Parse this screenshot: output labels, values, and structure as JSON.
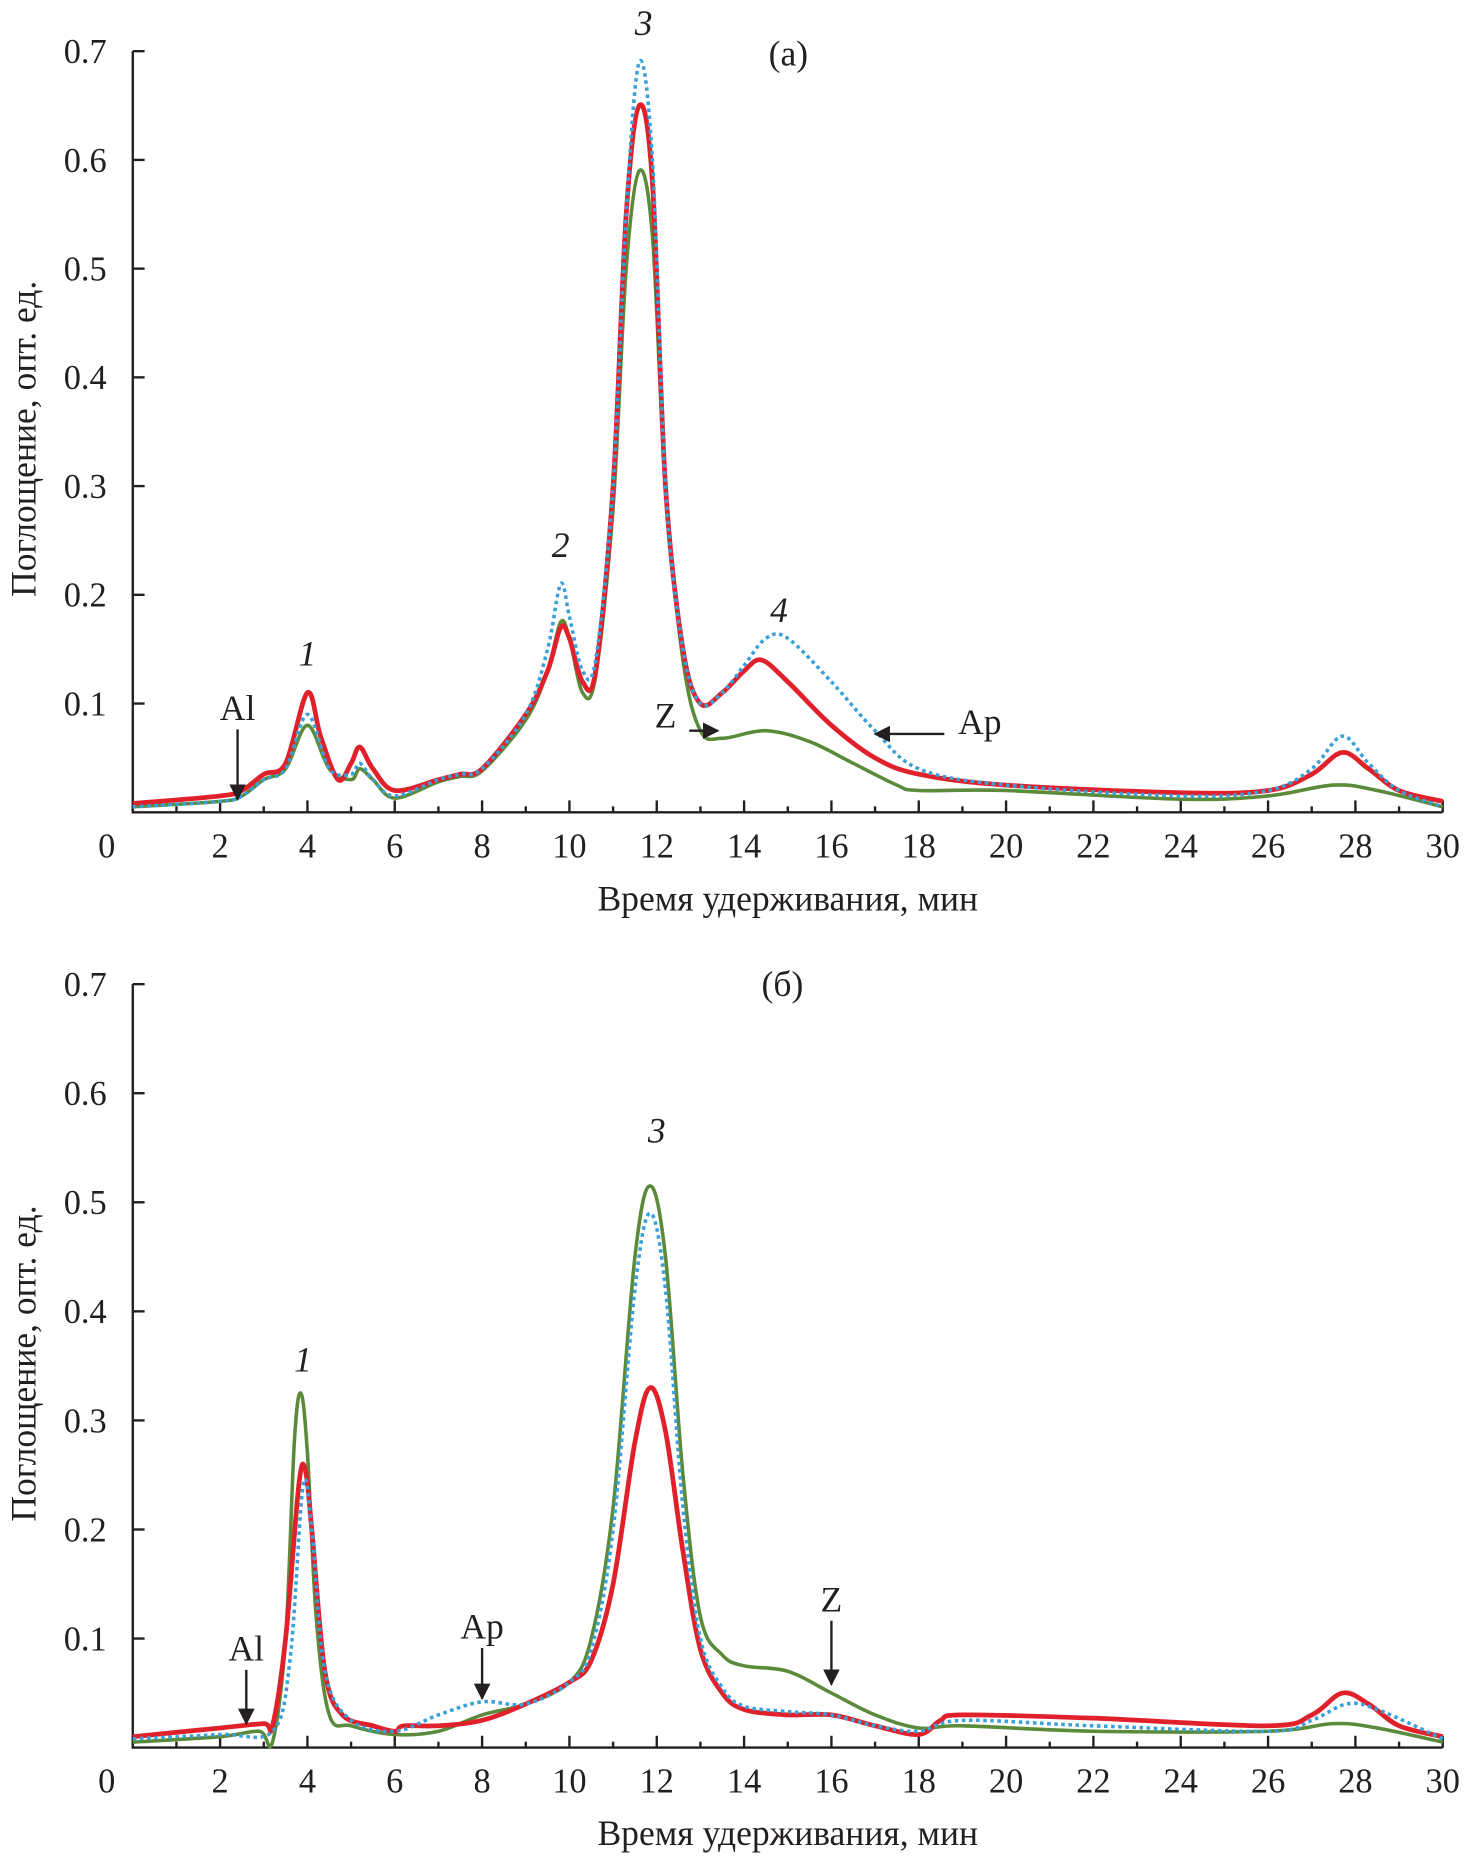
{
  "chart_data": [
    {
      "type": "line",
      "panel_label": "(а)",
      "xlabel": "Время удерживания, мин",
      "ylabel": "Поглощение, опт. ед.",
      "xlim": [
        0,
        30
      ],
      "ylim": [
        0,
        0.7
      ],
      "xticks": [
        "0",
        "2",
        "4",
        "6",
        "8",
        "10",
        "12",
        "14",
        "16",
        "18",
        "20",
        "22",
        "24",
        "26",
        "28",
        "30"
      ],
      "yticks": [
        "0.1",
        "0.2",
        "0.3",
        "0.4",
        "0.5",
        "0.6",
        "0.7"
      ],
      "series": [
        {
          "name": "green",
          "color": "#5a8a3a",
          "dash": false,
          "points": [
            [
              0,
              0.005
            ],
            [
              2,
              0.01
            ],
            [
              2.5,
              0.015
            ],
            [
              3,
              0.03
            ],
            [
              3.5,
              0.04
            ],
            [
              4,
              0.08
            ],
            [
              4.5,
              0.04
            ],
            [
              5,
              0.03
            ],
            [
              5.2,
              0.04
            ],
            [
              5.5,
              0.03
            ],
            [
              6,
              0.013
            ],
            [
              7,
              0.028
            ],
            [
              7.5,
              0.033
            ],
            [
              8,
              0.038
            ],
            [
              9,
              0.085
            ],
            [
              9.5,
              0.13
            ],
            [
              9.8,
              0.175
            ],
            [
              10,
              0.16
            ],
            [
              10.3,
              0.11
            ],
            [
              10.6,
              0.125
            ],
            [
              11,
              0.28
            ],
            [
              11.3,
              0.5
            ],
            [
              11.6,
              0.59
            ],
            [
              11.9,
              0.53
            ],
            [
              12.2,
              0.3
            ],
            [
              12.6,
              0.14
            ],
            [
              13,
              0.075
            ],
            [
              13.5,
              0.068
            ],
            [
              14.5,
              0.075
            ],
            [
              15.5,
              0.065
            ],
            [
              16.5,
              0.045
            ],
            [
              17.5,
              0.025
            ],
            [
              18,
              0.02
            ],
            [
              20,
              0.02
            ],
            [
              24,
              0.012
            ],
            [
              26,
              0.015
            ],
            [
              27.5,
              0.025
            ],
            [
              28.5,
              0.02
            ],
            [
              30,
              0.005
            ]
          ]
        },
        {
          "name": "red",
          "color": "#e0202a",
          "dash": false,
          "points": [
            [
              0,
              0.008
            ],
            [
              2,
              0.015
            ],
            [
              2.5,
              0.02
            ],
            [
              3,
              0.035
            ],
            [
              3.5,
              0.045
            ],
            [
              4,
              0.11
            ],
            [
              4.3,
              0.07
            ],
            [
              4.7,
              0.03
            ],
            [
              5,
              0.045
            ],
            [
              5.2,
              0.06
            ],
            [
              5.5,
              0.04
            ],
            [
              6,
              0.02
            ],
            [
              7,
              0.03
            ],
            [
              7.5,
              0.035
            ],
            [
              8,
              0.04
            ],
            [
              9,
              0.09
            ],
            [
              9.5,
              0.13
            ],
            [
              9.8,
              0.17
            ],
            [
              10,
              0.16
            ],
            [
              10.3,
              0.12
            ],
            [
              10.6,
              0.13
            ],
            [
              11,
              0.3
            ],
            [
              11.3,
              0.55
            ],
            [
              11.6,
              0.65
            ],
            [
              11.9,
              0.58
            ],
            [
              12.2,
              0.3
            ],
            [
              12.6,
              0.15
            ],
            [
              13,
              0.1
            ],
            [
              13.5,
              0.11
            ],
            [
              14,
              0.13
            ],
            [
              14.4,
              0.14
            ],
            [
              15,
              0.12
            ],
            [
              16,
              0.08
            ],
            [
              17,
              0.05
            ],
            [
              18,
              0.035
            ],
            [
              20,
              0.025
            ],
            [
              24,
              0.018
            ],
            [
              26,
              0.02
            ],
            [
              27,
              0.035
            ],
            [
              27.7,
              0.055
            ],
            [
              28.3,
              0.04
            ],
            [
              29,
              0.02
            ],
            [
              30,
              0.01
            ]
          ]
        },
        {
          "name": "blue",
          "color": "#3aa0d8",
          "dash": true,
          "points": [
            [
              0,
              0.005
            ],
            [
              2,
              0.01
            ],
            [
              2.5,
              0.015
            ],
            [
              3,
              0.03
            ],
            [
              3.5,
              0.04
            ],
            [
              4,
              0.09
            ],
            [
              4.5,
              0.04
            ],
            [
              5,
              0.035
            ],
            [
              5.2,
              0.045
            ],
            [
              5.5,
              0.03
            ],
            [
              6,
              0.015
            ],
            [
              7,
              0.03
            ],
            [
              7.5,
              0.035
            ],
            [
              8,
              0.04
            ],
            [
              9,
              0.09
            ],
            [
              9.5,
              0.15
            ],
            [
              9.8,
              0.21
            ],
            [
              10,
              0.18
            ],
            [
              10.3,
              0.13
            ],
            [
              10.6,
              0.14
            ],
            [
              11,
              0.3
            ],
            [
              11.3,
              0.55
            ],
            [
              11.6,
              0.69
            ],
            [
              11.9,
              0.6
            ],
            [
              12.2,
              0.3
            ],
            [
              12.6,
              0.15
            ],
            [
              13,
              0.1
            ],
            [
              13.5,
              0.11
            ],
            [
              14,
              0.135
            ],
            [
              14.5,
              0.16
            ],
            [
              15,
              0.16
            ],
            [
              16,
              0.12
            ],
            [
              17,
              0.075
            ],
            [
              18,
              0.04
            ],
            [
              20,
              0.025
            ],
            [
              24,
              0.015
            ],
            [
              26,
              0.02
            ],
            [
              27,
              0.04
            ],
            [
              27.7,
              0.07
            ],
            [
              28.3,
              0.045
            ],
            [
              29,
              0.02
            ],
            [
              30,
              0.005
            ]
          ]
        }
      ],
      "peak_labels": [
        {
          "text": "1",
          "x": 4,
          "y": 0.135
        },
        {
          "text": "2",
          "x": 9.8,
          "y": 0.235
        },
        {
          "text": "3",
          "x": 11.7,
          "y": 0.715
        },
        {
          "text": "4",
          "x": 14.8,
          "y": 0.175
        }
      ],
      "arrows": [
        {
          "text": "Al",
          "tx": 2.4,
          "ty": 0.085,
          "ax": 2.4,
          "ay": 0.012,
          "dir": "down"
        },
        {
          "text": "Z",
          "tx": 12.2,
          "ty": 0.078,
          "ax": 13.4,
          "ay": 0.075,
          "dir": "right"
        },
        {
          "text": "Ap",
          "tx": 19.4,
          "ty": 0.072,
          "ax": 17,
          "ay": 0.072,
          "dir": "left"
        }
      ]
    },
    {
      "type": "line",
      "panel_label": "(б)",
      "xlabel": "Время удерживания, мин",
      "ylabel": "Поглощение, опт. ед.",
      "xlim": [
        0,
        30
      ],
      "ylim": [
        0,
        0.7
      ],
      "xticks": [
        "0",
        "2",
        "4",
        "6",
        "8",
        "10",
        "12",
        "14",
        "16",
        "18",
        "20",
        "22",
        "24",
        "26",
        "28",
        "30"
      ],
      "yticks": [
        "0.1",
        "0.2",
        "0.3",
        "0.4",
        "0.5",
        "0.6",
        "0.7"
      ],
      "series": [
        {
          "name": "green",
          "color": "#5a8a3a",
          "dash": false,
          "points": [
            [
              0,
              0.005
            ],
            [
              2,
              0.01
            ],
            [
              2.9,
              0.015
            ],
            [
              3.2,
              0.005
            ],
            [
              3.5,
              0.1
            ],
            [
              3.7,
              0.28
            ],
            [
              3.85,
              0.325
            ],
            [
              4,
              0.27
            ],
            [
              4.2,
              0.12
            ],
            [
              4.5,
              0.03
            ],
            [
              5,
              0.02
            ],
            [
              6,
              0.012
            ],
            [
              7,
              0.015
            ],
            [
              8,
              0.03
            ],
            [
              9,
              0.04
            ],
            [
              10,
              0.06
            ],
            [
              10.5,
              0.1
            ],
            [
              11,
              0.22
            ],
            [
              11.5,
              0.45
            ],
            [
              11.85,
              0.515
            ],
            [
              12.2,
              0.45
            ],
            [
              12.6,
              0.25
            ],
            [
              13,
              0.12
            ],
            [
              13.5,
              0.085
            ],
            [
              14,
              0.075
            ],
            [
              15,
              0.07
            ],
            [
              16,
              0.05
            ],
            [
              17,
              0.03
            ],
            [
              18,
              0.018
            ],
            [
              19,
              0.02
            ],
            [
              22,
              0.015
            ],
            [
              26,
              0.015
            ],
            [
              27.5,
              0.022
            ],
            [
              28.5,
              0.018
            ],
            [
              30,
              0.005
            ]
          ]
        },
        {
          "name": "red",
          "color": "#e0202a",
          "dash": false,
          "points": [
            [
              0,
              0.01
            ],
            [
              2,
              0.018
            ],
            [
              3,
              0.022
            ],
            [
              3.2,
              0.02
            ],
            [
              3.5,
              0.1
            ],
            [
              3.8,
              0.24
            ],
            [
              3.95,
              0.255
            ],
            [
              4.1,
              0.2
            ],
            [
              4.4,
              0.07
            ],
            [
              4.8,
              0.03
            ],
            [
              5.5,
              0.02
            ],
            [
              6,
              0.015
            ],
            [
              6.2,
              0.02
            ],
            [
              7,
              0.02
            ],
            [
              8,
              0.025
            ],
            [
              9,
              0.04
            ],
            [
              10,
              0.06
            ],
            [
              10.5,
              0.08
            ],
            [
              11,
              0.15
            ],
            [
              11.5,
              0.28
            ],
            [
              11.85,
              0.33
            ],
            [
              12.2,
              0.29
            ],
            [
              12.6,
              0.18
            ],
            [
              13,
              0.09
            ],
            [
              13.5,
              0.05
            ],
            [
              14,
              0.035
            ],
            [
              15,
              0.03
            ],
            [
              16,
              0.03
            ],
            [
              17,
              0.02
            ],
            [
              18,
              0.012
            ],
            [
              18.5,
              0.025
            ],
            [
              19,
              0.03
            ],
            [
              22,
              0.027
            ],
            [
              26,
              0.02
            ],
            [
              27,
              0.03
            ],
            [
              27.7,
              0.05
            ],
            [
              28.3,
              0.04
            ],
            [
              29,
              0.02
            ],
            [
              30,
              0.01
            ]
          ]
        },
        {
          "name": "blue",
          "color": "#3aa0d8",
          "dash": true,
          "points": [
            [
              0,
              0.008
            ],
            [
              2,
              0.012
            ],
            [
              3.2,
              0.015
            ],
            [
              3.6,
              0.08
            ],
            [
              3.9,
              0.24
            ],
            [
              4.1,
              0.2
            ],
            [
              4.4,
              0.07
            ],
            [
              5,
              0.025
            ],
            [
              6,
              0.015
            ],
            [
              7,
              0.03
            ],
            [
              8,
              0.042
            ],
            [
              9,
              0.04
            ],
            [
              10,
              0.06
            ],
            [
              10.5,
              0.09
            ],
            [
              11,
              0.2
            ],
            [
              11.5,
              0.42
            ],
            [
              11.85,
              0.49
            ],
            [
              12.2,
              0.42
            ],
            [
              12.6,
              0.22
            ],
            [
              13,
              0.1
            ],
            [
              13.5,
              0.055
            ],
            [
              14,
              0.038
            ],
            [
              15,
              0.033
            ],
            [
              16,
              0.03
            ],
            [
              17,
              0.02
            ],
            [
              18,
              0.015
            ],
            [
              19,
              0.025
            ],
            [
              22,
              0.02
            ],
            [
              26,
              0.015
            ],
            [
              27,
              0.025
            ],
            [
              27.8,
              0.04
            ],
            [
              28.5,
              0.035
            ],
            [
              30,
              0.008
            ]
          ]
        }
      ],
      "peak_labels": [
        {
          "text": "1",
          "x": 3.9,
          "y": 0.345
        },
        {
          "text": "3",
          "x": 12.0,
          "y": 0.555
        }
      ],
      "arrows": [
        {
          "text": "Al",
          "tx": 2.6,
          "ty": 0.08,
          "ax": 2.6,
          "ay": 0.022,
          "dir": "down"
        },
        {
          "text": "Ap",
          "tx": 8.0,
          "ty": 0.1,
          "ax": 8.0,
          "ay": 0.045,
          "dir": "down"
        },
        {
          "text": "Z",
          "tx": 16.0,
          "ty": 0.125,
          "ax": 16.0,
          "ay": 0.058,
          "dir": "down"
        }
      ]
    }
  ]
}
